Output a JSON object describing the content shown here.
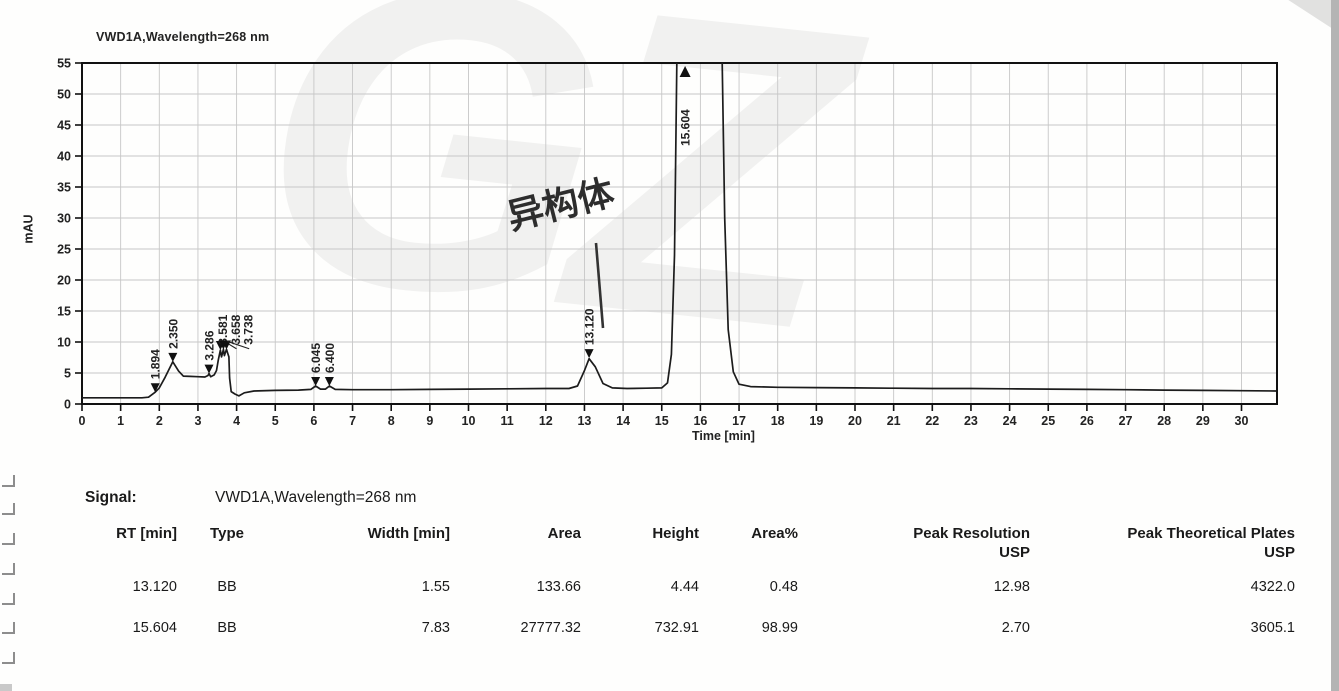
{
  "chart": {
    "title": "VWD1A,Wavelength=268 nm",
    "y_label": "mAU",
    "x_label": "Time [min]"
  },
  "chart_data": {
    "type": "line",
    "title": "VWD1A,Wavelength=268 nm",
    "xlabel": "Time [min]",
    "ylabel": "mAU",
    "xlim": [
      0,
      30.9
    ],
    "ylim": [
      0,
      55
    ],
    "x_tick_step": 1,
    "x_tick_max": 30,
    "y_tick_step": 5,
    "grid": true,
    "annotation": {
      "text": "异构体",
      "meaning": "isomer",
      "target_peak_rt": 13.12
    },
    "peaks": [
      {
        "label": "1.894",
        "rt": 1.894,
        "tip": 1.9,
        "dir": "down"
      },
      {
        "label": "2.350",
        "rt": 2.35,
        "tip": 6.8,
        "dir": "down"
      },
      {
        "label": "3.286",
        "rt": 3.286,
        "tip": 4.9,
        "dir": "down"
      },
      {
        "label": "3.581",
        "rt": 3.581,
        "tip": 8.7,
        "dir": "down",
        "label_rt": 3.64
      },
      {
        "label": "3.658",
        "rt": 3.658,
        "tip": 8.8,
        "dir": "down",
        "label_rt": 3.97
      },
      {
        "label": "3.738",
        "rt": 3.738,
        "tip": 8.8,
        "dir": "down",
        "label_rt": 4.3
      },
      {
        "label": "6.045",
        "rt": 6.045,
        "tip": 2.9,
        "dir": "down"
      },
      {
        "label": "6.400",
        "rt": 6.4,
        "tip": 2.9,
        "dir": "down"
      },
      {
        "label": "13.120",
        "rt": 13.12,
        "tip": 7.4,
        "dir": "down"
      },
      {
        "label": "15.604",
        "rt": 15.604,
        "tip": 55,
        "dir": "up"
      }
    ],
    "trace": [
      [
        0,
        1.0
      ],
      [
        0.5,
        1.0
      ],
      [
        1.0,
        1.0
      ],
      [
        1.55,
        1.0
      ],
      [
        1.72,
        1.1
      ],
      [
        1.894,
        1.9
      ],
      [
        2.0,
        2.6
      ],
      [
        2.15,
        4.3
      ],
      [
        2.35,
        6.8
      ],
      [
        2.5,
        5.3
      ],
      [
        2.62,
        4.5
      ],
      [
        2.8,
        4.45
      ],
      [
        3.0,
        4.4
      ],
      [
        3.18,
        4.35
      ],
      [
        3.26,
        4.6
      ],
      [
        3.286,
        4.9
      ],
      [
        3.33,
        4.4
      ],
      [
        3.42,
        4.7
      ],
      [
        3.48,
        5.4
      ],
      [
        3.53,
        7.2
      ],
      [
        3.581,
        8.7
      ],
      [
        3.61,
        7.6
      ],
      [
        3.635,
        8.2
      ],
      [
        3.658,
        8.8
      ],
      [
        3.685,
        7.8
      ],
      [
        3.71,
        8.3
      ],
      [
        3.738,
        8.8
      ],
      [
        3.77,
        8.2
      ],
      [
        3.8,
        7.6
      ],
      [
        3.82,
        4.2
      ],
      [
        3.86,
        2.0
      ],
      [
        3.96,
        1.6
      ],
      [
        4.06,
        1.3
      ],
      [
        4.2,
        1.8
      ],
      [
        4.45,
        2.1
      ],
      [
        5.0,
        2.2
      ],
      [
        5.6,
        2.25
      ],
      [
        5.92,
        2.35
      ],
      [
        6.045,
        2.9
      ],
      [
        6.17,
        2.4
      ],
      [
        6.3,
        2.4
      ],
      [
        6.4,
        2.9
      ],
      [
        6.55,
        2.35
      ],
      [
        7,
        2.3
      ],
      [
        8,
        2.3
      ],
      [
        9,
        2.35
      ],
      [
        10,
        2.4
      ],
      [
        11,
        2.45
      ],
      [
        12,
        2.5
      ],
      [
        12.6,
        2.5
      ],
      [
        12.82,
        2.9
      ],
      [
        13.0,
        5.4
      ],
      [
        13.12,
        7.3
      ],
      [
        13.28,
        6.0
      ],
      [
        13.48,
        3.3
      ],
      [
        13.72,
        2.6
      ],
      [
        14.1,
        2.5
      ],
      [
        14.6,
        2.55
      ],
      [
        15.0,
        2.6
      ],
      [
        15.15,
        3.4
      ],
      [
        15.25,
        8
      ],
      [
        15.33,
        24
      ],
      [
        15.4,
        60
      ],
      [
        16.55,
        60
      ],
      [
        16.63,
        30
      ],
      [
        16.72,
        12
      ],
      [
        16.85,
        5.2
      ],
      [
        17.0,
        3.2
      ],
      [
        17.3,
        2.8
      ],
      [
        18,
        2.7
      ],
      [
        19,
        2.65
      ],
      [
        20,
        2.6
      ],
      [
        21,
        2.55
      ],
      [
        22,
        2.5
      ],
      [
        23,
        2.5
      ],
      [
        24,
        2.45
      ],
      [
        25,
        2.4
      ],
      [
        26,
        2.35
      ],
      [
        27,
        2.3
      ],
      [
        28,
        2.25
      ],
      [
        29,
        2.2
      ],
      [
        30,
        2.15
      ],
      [
        30.9,
        2.1
      ]
    ]
  },
  "table": {
    "signal_label": "Signal:",
    "signal_value": "VWD1A,Wavelength=268 nm",
    "columns": [
      "RT [min]",
      "Type",
      "Width [min]",
      "Area",
      "Height",
      "Area%",
      "Peak Resolution\nUSP",
      "Peak Theoretical Plates\nUSP"
    ],
    "rows": [
      [
        "13.120",
        "BB",
        "1.55",
        "133.66",
        "4.44",
        "0.48",
        "12.98",
        "4322.0"
      ],
      [
        "15.604",
        "BB",
        "7.83",
        "27777.32",
        "732.91",
        "98.99",
        "2.70",
        "3605.1"
      ]
    ]
  },
  "watermark_text": "GZ",
  "colors": {
    "trace": "#1c1c1c",
    "grid": "#c7c7c7",
    "axis": "#111111",
    "text": "#222222"
  }
}
